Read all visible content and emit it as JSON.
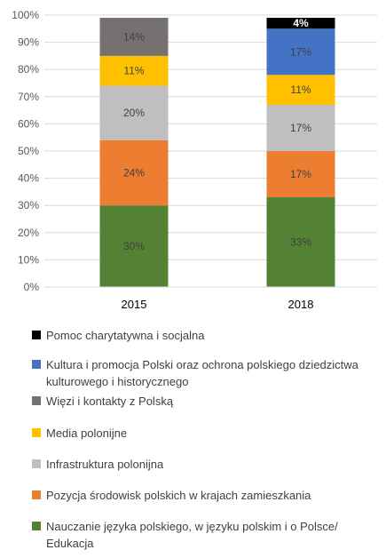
{
  "chart_data": {
    "type": "bar",
    "stacked": true,
    "categories": [
      "2015",
      "2018"
    ],
    "ylim": [
      0,
      100
    ],
    "yticks": [
      "0%",
      "10%",
      "20%",
      "30%",
      "40%",
      "50%",
      "60%",
      "70%",
      "80%",
      "90%",
      "100%"
    ],
    "grid": true,
    "legend_position": "bottom",
    "series": [
      {
        "name": "Nauczanie języka polskiego, w języku polskim i o Polsce/ Edukacja",
        "color": "#548235",
        "values": [
          30,
          33
        ],
        "labels": [
          "30%",
          "33%"
        ]
      },
      {
        "name": "Pozycja środowisk polskich w krajach zamieszkania",
        "color": "#ED7D31",
        "values": [
          24,
          17
        ],
        "labels": [
          "24%",
          "17%"
        ]
      },
      {
        "name": "Infrastruktura polonijna",
        "color": "#BFBFBF",
        "values": [
          20,
          17
        ],
        "labels": [
          "20%",
          "17%"
        ]
      },
      {
        "name": "Media polonijne",
        "color": "#FFC000",
        "values": [
          11,
          11
        ],
        "labels": [
          "11%",
          "11%"
        ]
      },
      {
        "name": "Więzi i kontakty z Polską",
        "color": "#767171",
        "values": [
          14,
          0
        ],
        "labels": [
          "14%",
          ""
        ]
      },
      {
        "name": "Kultura i promocja Polski oraz ochrona polskiego dziedzictwa kulturowego i historycznego",
        "color": "#4472C4",
        "values": [
          0,
          17
        ],
        "labels": [
          "",
          "17%"
        ]
      },
      {
        "name": "Pomoc charytatywna i socjalna",
        "color": "#000000",
        "values": [
          0,
          4
        ],
        "labels": [
          "",
          "4%"
        ]
      }
    ],
    "legend_order": [
      6,
      5,
      4,
      3,
      2,
      1,
      0
    ]
  }
}
